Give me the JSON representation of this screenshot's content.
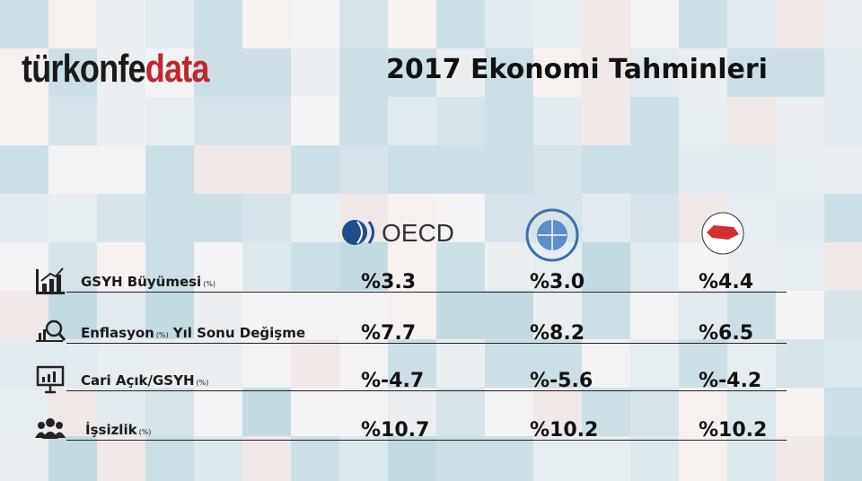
{
  "header": {
    "brand": {
      "dark": "türkonfe",
      "accent": "data"
    },
    "title": "2017 Ekonomi Tahminleri"
  },
  "table": {
    "columns": [
      "OECD",
      null,
      null
    ],
    "rows": [
      {
        "label": [
          "GSYH Büyümesi",
          "(%)"
        ],
        "values": [
          "%3.3",
          "%3.0",
          "%4.4"
        ]
      },
      {
        "label": [
          "Enflasyon",
          "(%)",
          "Yıl Sonu Değişme"
        ],
        "values": [
          "%7.7",
          "%8.2",
          "%6.5"
        ]
      },
      {
        "label": [
          "Cari Açık/GSYH",
          "(%)"
        ],
        "values": [
          "%-4.7",
          "%-5.6",
          "%-4.2"
        ]
      },
      {
        "label": [
          "İşsizlik",
          "(%)"
        ],
        "values": [
          "%10.7",
          "%10.2",
          "%10.2"
        ]
      }
    ]
  }
}
